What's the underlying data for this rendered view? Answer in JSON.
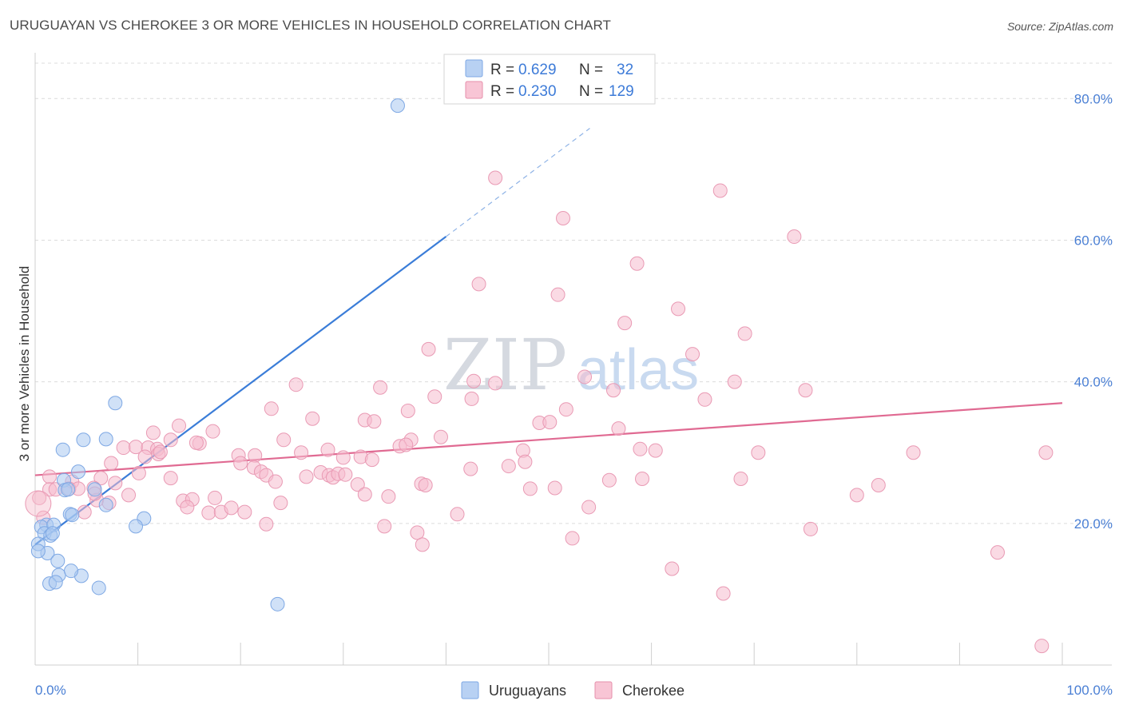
{
  "title": "URUGUAYAN VS CHEROKEE 3 OR MORE VEHICLES IN HOUSEHOLD CORRELATION CHART",
  "source": "Source: ZipAtlas.com",
  "watermark": {
    "zip": "ZIP",
    "atlas": "atlas"
  },
  "colors": {
    "uruguayan": "#3b7dd8",
    "cherokee": "#e06a92",
    "uruguayan_fill": "#a9c8f1",
    "cherokee_fill": "#f6bccd",
    "axis_text": "#4a7fd4"
  },
  "legend": {
    "rows": [
      {
        "r_label": "R = ",
        "r_value": "0.629",
        "n_label": "N = ",
        "n_value": "32"
      },
      {
        "r_label": "R = ",
        "r_value": "0.230",
        "n_label": "N = ",
        "n_value": "129"
      }
    ]
  },
  "chart_data": {
    "type": "scatter",
    "title": "URUGUAYAN VS CHEROKEE 3 OR MORE VEHICLES IN HOUSEHOLD CORRELATION CHART",
    "xlabel": "",
    "ylabel": "3 or more Vehicles in Household",
    "xlim": [
      0,
      100
    ],
    "ylim": [
      0,
      85
    ],
    "x_tick_labels": [
      "0.0%",
      "100.0%"
    ],
    "y_ticks": [
      20,
      40,
      60,
      80
    ],
    "y_tick_labels": [
      "20.0%",
      "40.0%",
      "60.0%",
      "80.0%"
    ],
    "grid": true,
    "legend_position": "top-center",
    "series": [
      {
        "name": "Uruguayans",
        "r": 0.629,
        "n": 32,
        "trend": {
          "x0": 0,
          "y0": 17.0,
          "x1": 40,
          "y1": 60.5,
          "dashed_to_x": 54,
          "dashed_to_y": 75.8
        },
        "points": [
          [
            35.3,
            79
          ],
          [
            7.8,
            37
          ],
          [
            4.7,
            31.8
          ],
          [
            6.9,
            31.9
          ],
          [
            2.7,
            30.4
          ],
          [
            4.2,
            27.3
          ],
          [
            2.8,
            26.1
          ],
          [
            2.9,
            24.7
          ],
          [
            3.2,
            24.8
          ],
          [
            5.8,
            24.8
          ],
          [
            3.4,
            21.3
          ],
          [
            3.6,
            21.2
          ],
          [
            6.9,
            22.6
          ],
          [
            10.6,
            20.7
          ],
          [
            1.1,
            19.8
          ],
          [
            0.6,
            19.5
          ],
          [
            1.8,
            19.8
          ],
          [
            9.8,
            19.6
          ],
          [
            0.9,
            18.6
          ],
          [
            1.5,
            18.3
          ],
          [
            1.7,
            18.6
          ],
          [
            0.3,
            17.1
          ],
          [
            1.2,
            15.8
          ],
          [
            2.2,
            14.7
          ],
          [
            0.3,
            16.1
          ],
          [
            2.3,
            12.7
          ],
          [
            4.5,
            12.6
          ],
          [
            3.5,
            13.3
          ],
          [
            1.4,
            11.5
          ],
          [
            2.0,
            11.7
          ],
          [
            6.2,
            10.9
          ],
          [
            23.6,
            8.6
          ]
        ]
      },
      {
        "name": "Cherokee",
        "r": 0.23,
        "n": 129,
        "trend": {
          "x0": 0,
          "y0": 26.8,
          "x1": 100,
          "y1": 37.0
        },
        "points": [
          [
            44.8,
            68.8
          ],
          [
            66.7,
            67.0
          ],
          [
            51.4,
            63.1
          ],
          [
            73.9,
            60.5
          ],
          [
            58.6,
            56.7
          ],
          [
            43.2,
            53.8
          ],
          [
            50.9,
            52.3
          ],
          [
            62.6,
            50.3
          ],
          [
            57.4,
            48.3
          ],
          [
            69.1,
            46.8
          ],
          [
            38.3,
            44.6
          ],
          [
            64.0,
            43.9
          ],
          [
            53.5,
            40.7
          ],
          [
            42.7,
            40.1
          ],
          [
            44.8,
            39.8
          ],
          [
            68.1,
            40.0
          ],
          [
            25.4,
            39.6
          ],
          [
            33.6,
            39.2
          ],
          [
            56.3,
            38.8
          ],
          [
            75.0,
            38.8
          ],
          [
            38.9,
            37.9
          ],
          [
            42.5,
            37.6
          ],
          [
            65.2,
            37.5
          ],
          [
            51.7,
            36.1
          ],
          [
            23.0,
            36.2
          ],
          [
            36.3,
            35.9
          ],
          [
            27.0,
            34.8
          ],
          [
            32.1,
            34.6
          ],
          [
            33.0,
            34.4
          ],
          [
            49.1,
            34.2
          ],
          [
            50.1,
            34.3
          ],
          [
            14.0,
            33.8
          ],
          [
            17.3,
            33.0
          ],
          [
            56.8,
            33.4
          ],
          [
            11.5,
            32.8
          ],
          [
            39.5,
            32.2
          ],
          [
            13.2,
            31.8
          ],
          [
            16.0,
            31.3
          ],
          [
            36.6,
            31.8
          ],
          [
            15.7,
            31.4
          ],
          [
            24.2,
            31.8
          ],
          [
            8.6,
            30.7
          ],
          [
            9.8,
            30.8
          ],
          [
            11.0,
            30.7
          ],
          [
            11.9,
            30.5
          ],
          [
            19.8,
            29.6
          ],
          [
            21.4,
            29.6
          ],
          [
            25.9,
            30.0
          ],
          [
            28.5,
            30.4
          ],
          [
            30.0,
            29.3
          ],
          [
            31.7,
            29.4
          ],
          [
            32.8,
            29.0
          ],
          [
            35.5,
            30.9
          ],
          [
            36.1,
            31.1
          ],
          [
            47.5,
            30.3
          ],
          [
            58.9,
            30.5
          ],
          [
            60.4,
            30.3
          ],
          [
            85.5,
            30.0
          ],
          [
            98.4,
            30.0
          ],
          [
            70.4,
            30.0
          ],
          [
            12.0,
            29.8
          ],
          [
            12.2,
            30.1
          ],
          [
            10.7,
            29.4
          ],
          [
            7.4,
            28.5
          ],
          [
            20.0,
            28.5
          ],
          [
            21.3,
            27.9
          ],
          [
            22.0,
            27.3
          ],
          [
            22.5,
            26.8
          ],
          [
            26.4,
            26.6
          ],
          [
            27.8,
            27.2
          ],
          [
            28.6,
            26.8
          ],
          [
            29.0,
            26.5
          ],
          [
            29.5,
            27.0
          ],
          [
            30.2,
            26.9
          ],
          [
            47.7,
            28.7
          ],
          [
            46.1,
            28.1
          ],
          [
            42.4,
            27.7
          ],
          [
            10.1,
            27.1
          ],
          [
            1.4,
            26.6
          ],
          [
            3.6,
            25.9
          ],
          [
            6.4,
            26.4
          ],
          [
            7.8,
            25.7
          ],
          [
            13.2,
            26.4
          ],
          [
            23.4,
            25.9
          ],
          [
            31.4,
            25.5
          ],
          [
            37.6,
            25.6
          ],
          [
            38.0,
            25.4
          ],
          [
            55.9,
            26.1
          ],
          [
            59.1,
            26.3
          ],
          [
            68.7,
            26.3
          ],
          [
            82.1,
            25.4
          ],
          [
            1.4,
            24.8
          ],
          [
            2.0,
            24.8
          ],
          [
            3.3,
            24.9
          ],
          [
            4.2,
            24.9
          ],
          [
            5.7,
            25.0
          ],
          [
            9.1,
            24.0
          ],
          [
            32.1,
            24.1
          ],
          [
            34.4,
            23.8
          ],
          [
            48.2,
            24.9
          ],
          [
            50.6,
            25.0
          ],
          [
            80.0,
            24.0
          ],
          [
            0.4,
            23.6
          ],
          [
            6.0,
            23.3
          ],
          [
            7.2,
            22.9
          ],
          [
            14.4,
            23.2
          ],
          [
            15.3,
            23.4
          ],
          [
            17.5,
            23.6
          ],
          [
            23.9,
            22.9
          ],
          [
            14.8,
            22.3
          ],
          [
            16.9,
            21.5
          ],
          [
            18.1,
            21.6
          ],
          [
            19.1,
            22.2
          ],
          [
            20.4,
            21.6
          ],
          [
            41.1,
            21.3
          ],
          [
            53.9,
            22.3
          ],
          [
            5.8,
            24.2
          ],
          [
            4.8,
            21.6
          ],
          [
            34.0,
            19.6
          ],
          [
            22.5,
            19.9
          ],
          [
            75.5,
            19.2
          ],
          [
            37.2,
            18.7
          ],
          [
            37.7,
            17.0
          ],
          [
            52.3,
            17.9
          ],
          [
            93.7,
            15.9
          ],
          [
            62.0,
            13.6
          ],
          [
            67.0,
            10.1
          ],
          [
            0.8,
            20.8
          ],
          [
            98.0,
            2.7
          ]
        ]
      }
    ]
  },
  "bottom_legend": {
    "items": [
      "Uruguayans",
      "Cherokee"
    ]
  }
}
